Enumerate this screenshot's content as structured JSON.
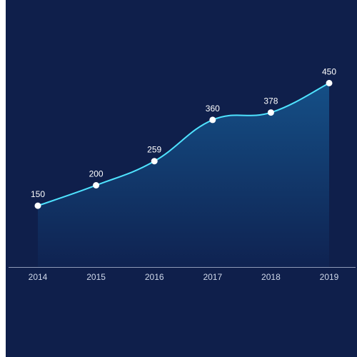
{
  "chart_data": {
    "type": "area",
    "categories": [
      "2014",
      "2015",
      "2016",
      "2017",
      "2018",
      "2019"
    ],
    "values": [
      150,
      200,
      259,
      360,
      378,
      450
    ],
    "ylim": [
      0,
      520
    ],
    "grid": false,
    "legend": "none",
    "colors": {
      "background": "#0f1f4b",
      "line": "#4fe3ff",
      "area_top": "#15528a",
      "area_bottom": "#0f2352",
      "marker": "#ffffff",
      "axis": "#8f9bb8"
    }
  }
}
